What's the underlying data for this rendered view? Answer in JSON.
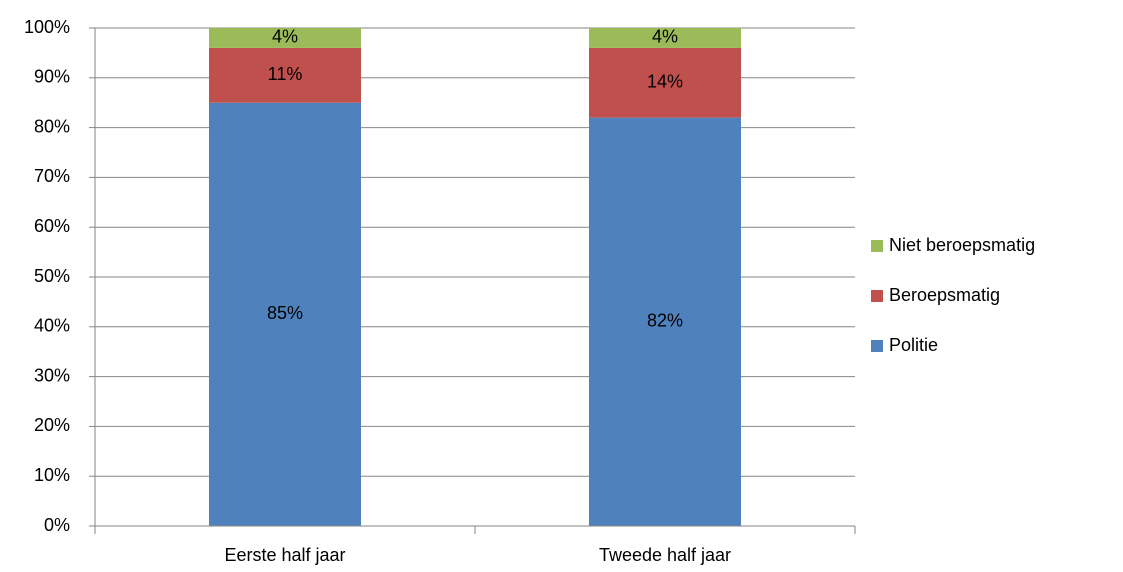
{
  "chart_data": {
    "type": "stacked_bar",
    "categories": [
      "Eerste half jaar",
      "Tweede half jaar"
    ],
    "series": [
      {
        "name": "Politie",
        "color": "#4f81bd",
        "values": [
          85,
          82
        ],
        "value_labels": [
          "85%",
          "82%"
        ]
      },
      {
        "name": "Beroepsmatig",
        "color": "#c0504d",
        "values": [
          11,
          14
        ],
        "value_labels": [
          "11%",
          "14%"
        ]
      },
      {
        "name": "Niet beroepsmatig",
        "color": "#9bbb59",
        "values": [
          4,
          4
        ],
        "value_labels": [
          "4%",
          "4%"
        ]
      }
    ],
    "ylim": [
      0,
      100
    ],
    "yticks": [
      {
        "value": 0,
        "label": "0%"
      },
      {
        "value": 10,
        "label": "10%"
      },
      {
        "value": 20,
        "label": "20%"
      },
      {
        "value": 30,
        "label": "30%"
      },
      {
        "value": 40,
        "label": "40%"
      },
      {
        "value": 50,
        "label": "50%"
      },
      {
        "value": 60,
        "label": "60%"
      },
      {
        "value": 70,
        "label": "70%"
      },
      {
        "value": 80,
        "label": "80%"
      },
      {
        "value": 90,
        "label": "90%"
      },
      {
        "value": 100,
        "label": "100%"
      }
    ],
    "grid": true,
    "legend": "right"
  }
}
